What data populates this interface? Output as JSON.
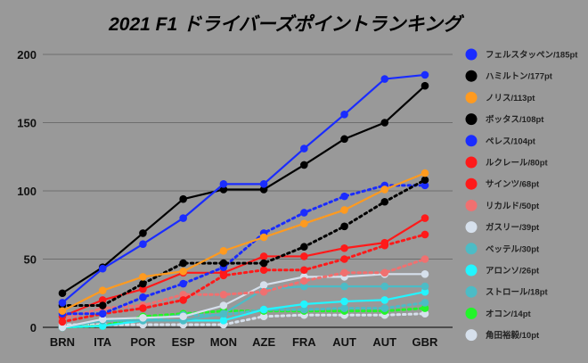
{
  "chart_data": {
    "type": "line",
    "title": "2021 F1 ドライバーズポイントランキング",
    "xlabel": "",
    "ylabel": "",
    "ylim": [
      0,
      200
    ],
    "yticks": [
      0,
      50,
      100,
      150,
      200
    ],
    "grid": true,
    "legend_position": "right",
    "categories": [
      "BRN",
      "ITA",
      "POR",
      "ESP",
      "MON",
      "AZE",
      "FRA",
      "AUT",
      "AUT",
      "GBR"
    ],
    "series": [
      {
        "name": "フェルスタッペン/185pt",
        "color": "#1a2cff",
        "dash": false,
        "values": [
          18,
          43,
          61,
          80,
          105,
          105,
          131,
          156,
          182,
          185
        ]
      },
      {
        "name": "ハミルトン/177pt",
        "color": "#000000",
        "dash": false,
        "values": [
          25,
          44,
          69,
          94,
          101,
          101,
          119,
          138,
          150,
          177
        ]
      },
      {
        "name": "ノリス/113pt",
        "color": "#ff9a1f",
        "dash": false,
        "values": [
          12,
          27,
          37,
          41,
          56,
          66,
          76,
          86,
          101,
          113
        ]
      },
      {
        "name": "ボッタス/108pt",
        "color": "#000000",
        "dash": true,
        "values": [
          16,
          16,
          32,
          47,
          47,
          47,
          59,
          74,
          92,
          108
        ]
      },
      {
        "name": "ペレス/104pt",
        "color": "#1a2cff",
        "dash": true,
        "values": [
          10,
          10,
          22,
          32,
          44,
          69,
          84,
          96,
          104,
          104
        ]
      },
      {
        "name": "ルクレール/80pt",
        "color": "#ff1a1a",
        "dash": false,
        "values": [
          8,
          20,
          28,
          40,
          40,
          52,
          52,
          58,
          62,
          80
        ]
      },
      {
        "name": "サインツ/68pt",
        "color": "#ff1a1a",
        "dash": true,
        "values": [
          4,
          10,
          14,
          20,
          38,
          42,
          42,
          50,
          60,
          68
        ]
      },
      {
        "name": "リカルド/50pt",
        "color": "#f07070",
        "dash": true,
        "values": [
          6,
          14,
          16,
          24,
          24,
          26,
          34,
          40,
          40,
          50
        ]
      },
      {
        "name": "ガスリー/39pt",
        "color": "#d6e0ec",
        "dash": false,
        "values": [
          0,
          6,
          7,
          8,
          16,
          31,
          37,
          37,
          39,
          39
        ]
      },
      {
        "name": "ベッテル/30pt",
        "color": "#4cbcc6",
        "dash": false,
        "values": [
          0,
          5,
          5,
          5,
          10,
          28,
          30,
          30,
          30,
          30
        ]
      },
      {
        "name": "アロンソ/26pt",
        "color": "#22f5ff",
        "dash": false,
        "values": [
          0,
          1,
          5,
          5,
          5,
          13,
          17,
          19,
          20,
          26
        ]
      },
      {
        "name": "ストロール/18pt",
        "color": "#4cbcc6",
        "dash": true,
        "values": [
          0,
          5,
          5,
          9,
          9,
          13,
          13,
          14,
          14,
          18
        ]
      },
      {
        "name": "オコン/14pt",
        "color": "#22f52a",
        "dash": true,
        "values": [
          0,
          1,
          8,
          10,
          12,
          12,
          12,
          12,
          12,
          14
        ]
      },
      {
        "name": "角田裕毅/10pt",
        "color": "#d6e0ec",
        "dash": true,
        "values": [
          2,
          2,
          2,
          2,
          2,
          8,
          9,
          9,
          9,
          10
        ]
      }
    ]
  }
}
